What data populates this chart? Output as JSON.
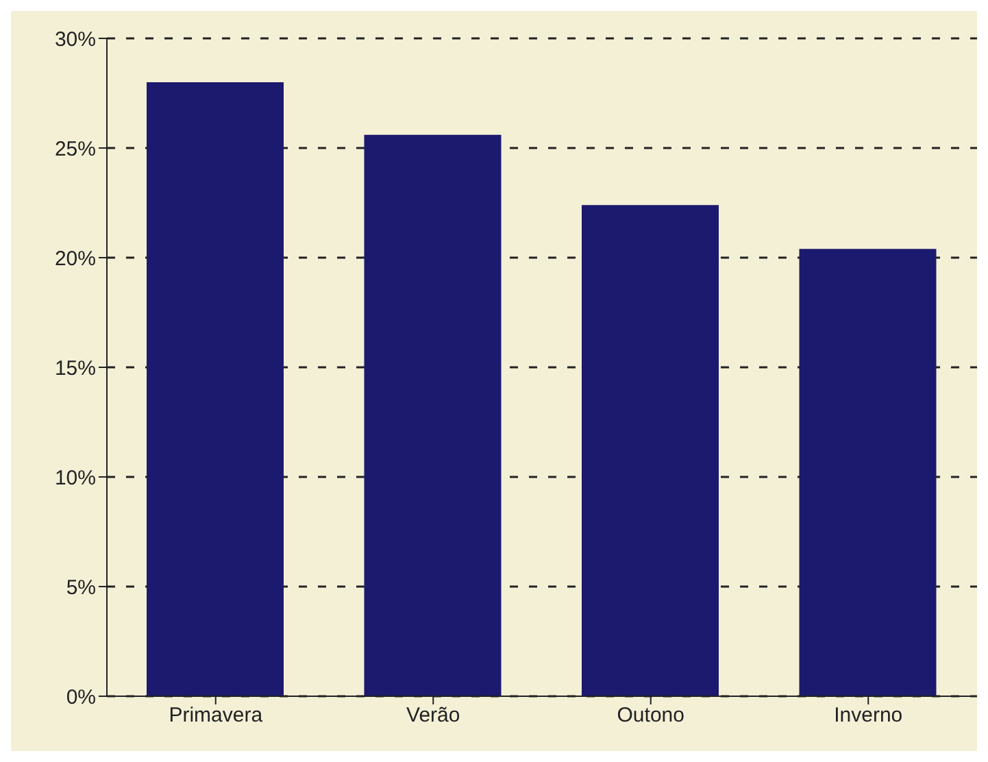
{
  "chart_data": {
    "type": "bar",
    "categories": [
      "Primavera",
      "Verão",
      "Outono",
      "Inverno"
    ],
    "values": [
      28,
      25.6,
      22.4,
      20.4
    ],
    "color": "#1c1a6e",
    "ylim": [
      0,
      30
    ],
    "yticks": [
      {
        "value": 0,
        "label": "0%"
      },
      {
        "value": 5,
        "label": "5%"
      },
      {
        "value": 10,
        "label": "10%"
      },
      {
        "value": 15,
        "label": "15%"
      },
      {
        "value": 20,
        "label": "20%"
      },
      {
        "value": 25,
        "label": "25%"
      },
      {
        "value": 30,
        "label": "30%"
      }
    ],
    "grid": "y",
    "legend": false
  }
}
